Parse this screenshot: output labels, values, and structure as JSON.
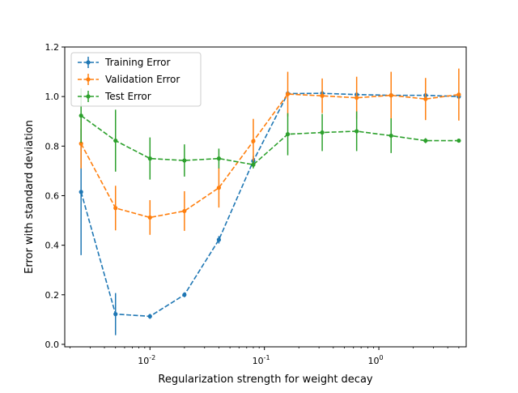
{
  "chart_data": {
    "type": "line",
    "title": "",
    "xlabel": "Regularization strength for weight decay",
    "ylabel": "Error with standard deviation",
    "xscale": "log",
    "xlim": [
      0.0018,
      5.8
    ],
    "ylim": [
      -0.01,
      1.2
    ],
    "yticks": [
      0.0,
      0.2,
      0.4,
      0.6,
      0.8,
      1.0,
      1.2
    ],
    "ytick_labels": [
      "0.0",
      "0.2",
      "0.4",
      "0.6",
      "0.8",
      "1.0",
      "1.2"
    ],
    "xticks": [
      0.01,
      0.1,
      1
    ],
    "xtick_labels": [
      "10^-2",
      "10^-1",
      "10^0"
    ],
    "grid": false,
    "legend_position": "top-left",
    "x": [
      0.0025,
      0.005,
      0.01,
      0.02,
      0.04,
      0.08,
      0.16,
      0.32,
      0.64,
      1.28,
      2.56,
      5.0
    ],
    "series": [
      {
        "name": "Training Error",
        "color": "#1f77b4",
        "values": [
          0.615,
          0.122,
          0.113,
          0.2,
          0.422,
          0.74,
          1.012,
          1.013,
          1.008,
          1.005,
          1.005,
          1.0
        ],
        "errors": [
          0.255,
          0.085,
          0.01,
          0.01,
          0.015,
          0.02,
          0.01,
          0.012,
          0.01,
          0.01,
          0.01,
          0.01
        ]
      },
      {
        "name": "Validation Error",
        "color": "#ff7f0e",
        "values": [
          0.81,
          0.55,
          0.512,
          0.538,
          0.632,
          0.82,
          1.01,
          1.003,
          0.995,
          1.005,
          0.99,
          1.008
        ],
        "errors": [
          0.1,
          0.09,
          0.07,
          0.08,
          0.08,
          0.09,
          0.09,
          0.07,
          0.085,
          0.095,
          0.085,
          0.105
        ]
      },
      {
        "name": "Test Error",
        "color": "#2ca02c",
        "values": [
          0.923,
          0.822,
          0.75,
          0.742,
          0.75,
          0.725,
          0.848,
          0.855,
          0.86,
          0.842,
          0.822,
          0.822
        ],
        "errors": [
          0.11,
          0.125,
          0.085,
          0.065,
          0.04,
          0.015,
          0.085,
          0.075,
          0.08,
          0.07,
          0.01,
          0.008
        ]
      }
    ]
  }
}
